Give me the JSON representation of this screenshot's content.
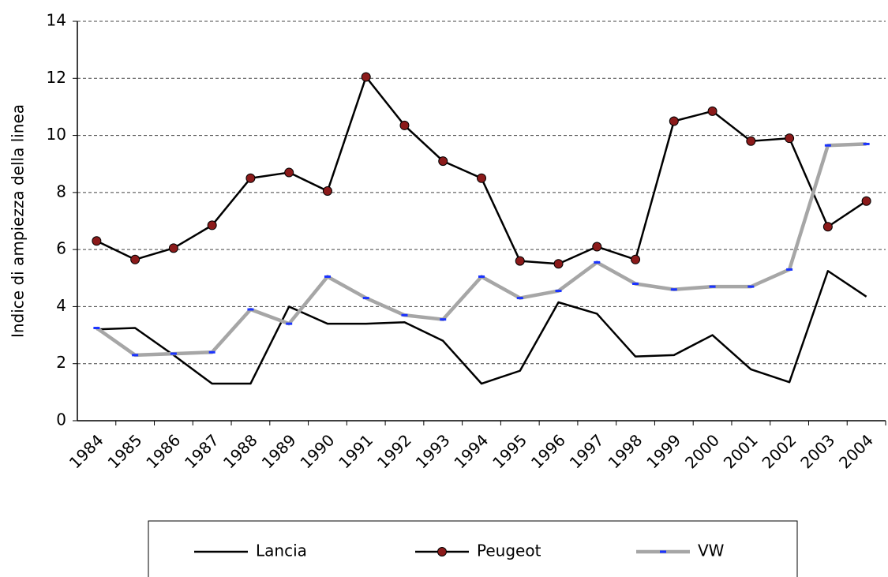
{
  "chart_data": {
    "type": "line",
    "y_label": "Indice di ampiezza della linea",
    "categories": [
      "1984",
      "1985",
      "1986",
      "1987",
      "1988",
      "1989",
      "1990",
      "1991",
      "1992",
      "1993",
      "1994",
      "1995",
      "1996",
      "1997",
      "1998",
      "1999",
      "2000",
      "2001",
      "2002",
      "2003",
      "2004"
    ],
    "series": [
      {
        "name": "Lancia",
        "color": "#000000",
        "values": [
          3.2,
          3.25,
          2.3,
          1.3,
          1.3,
          4.0,
          3.4,
          3.4,
          3.45,
          2.8,
          1.3,
          1.75,
          4.15,
          3.75,
          2.25,
          2.3,
          3.0,
          1.8,
          1.35,
          5.25,
          4.35
        ]
      },
      {
        "name": "Peugeot",
        "color": "#8b1a1a",
        "values": [
          6.3,
          5.65,
          6.05,
          6.85,
          8.5,
          8.7,
          8.05,
          12.05,
          10.35,
          9.1,
          8.5,
          5.6,
          5.5,
          6.1,
          5.65,
          10.5,
          10.85,
          9.8,
          9.9,
          6.8,
          7.7
        ]
      },
      {
        "name": "VW",
        "color": "#a6a6a6",
        "values": [
          3.25,
          2.3,
          2.35,
          2.4,
          3.9,
          3.4,
          5.05,
          4.3,
          3.7,
          3.55,
          5.05,
          4.3,
          4.55,
          5.55,
          4.8,
          4.6,
          4.7,
          4.7,
          5.3,
          9.65,
          9.7
        ]
      }
    ],
    "ylim": [
      0,
      14
    ],
    "yticks": [
      0,
      2,
      4,
      6,
      8,
      10,
      12,
      14
    ],
    "grid": true
  }
}
